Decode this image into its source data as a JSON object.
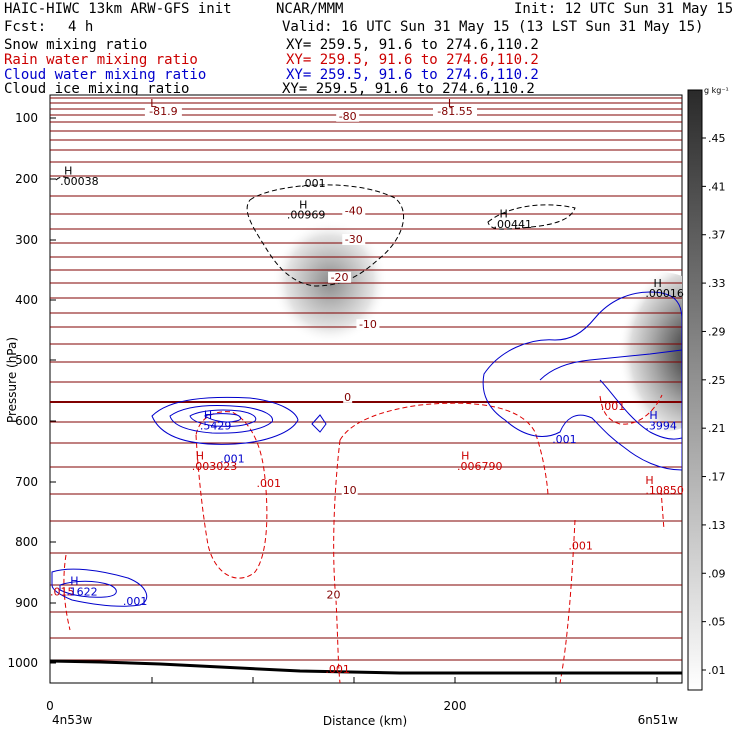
{
  "header": {
    "model": "HAIC-HIWC 13km ARW-GFS init",
    "center": "NCAR/MMM",
    "init": "Init: 12 UTC Sun 31 May 15",
    "fcst_label": "Fcst:",
    "fcst_value": "4 h",
    "valid": "Valid: 16 UTC Sun 31 May 15 (13 LST Sun 31 May 15)"
  },
  "fields": [
    {
      "name": "Snow mixing ratio",
      "xy": "XY= 259.5, 91.6 to 274.6,110.2",
      "color": "#000000"
    },
    {
      "name": "Rain water mixing ratio",
      "xy": "XY= 259.5, 91.6 to 274.6,110.2",
      "color": "#cc0000"
    },
    {
      "name": "Cloud water mixing ratio",
      "xy": "XY= 259.5, 91.6 to 274.6,110.2",
      "color": "#0000cc"
    },
    {
      "name": "Cloud ice mixing ratio",
      "xy": "XY= 259.5, 91.6 to 274.6,110.2",
      "color": "#000000"
    }
  ],
  "colorbar": {
    "unit": "g kg⁻¹",
    "ticks": [
      ".45",
      ".41",
      ".37",
      ".33",
      ".29",
      ".25",
      ".21",
      ".17",
      ".13",
      ".09",
      ".05",
      ".01"
    ]
  },
  "chart_data": {
    "type": "contour",
    "xlabel": "Distance (km)",
    "ylabel": "Pressure (hPa)",
    "xlim": [
      0,
      310
    ],
    "ylim": [
      1050,
      70
    ],
    "x_ticks": [
      "0",
      "200"
    ],
    "y_ticks": [
      "100",
      "200",
      "300",
      "400",
      "500",
      "600",
      "700",
      "800",
      "900",
      "1000"
    ],
    "endpoint_left": "4n53w",
    "endpoint_right": "6n51w",
    "temperature_labels": [
      {
        "text": "-81.9",
        "x": 56,
        "p": 95
      },
      {
        "text": "-80",
        "x": 147,
        "p": 103
      },
      {
        "text": "-81.55",
        "x": 200,
        "p": 95
      },
      {
        "text": "-40",
        "x": 150,
        "p": 258
      },
      {
        "text": "-30",
        "x": 150,
        "p": 305
      },
      {
        "text": "-20",
        "x": 143,
        "p": 368
      },
      {
        "text": "-10",
        "x": 157,
        "p": 447
      },
      {
        "text": "0",
        "x": 147,
        "p": 567
      },
      {
        "text": "10",
        "x": 148,
        "p": 720
      },
      {
        "text": "20",
        "x": 140,
        "p": 893
      }
    ],
    "low_markers": [
      {
        "text": "L",
        "x": 51,
        "p": 82
      },
      {
        "text": "L",
        "x": 198,
        "p": 82
      }
    ],
    "ice_labels": [
      {
        "text": ".001",
        "x": 124,
        "p": 213
      },
      {
        "text": "H",
        "x": 123,
        "p": 248
      },
      {
        "text": ".00969",
        "x": 117,
        "p": 265
      },
      {
        "text": "H",
        "x": 222,
        "p": 263
      },
      {
        "text": ".00441",
        "x": 219,
        "p": 280
      },
      {
        "text": "H",
        "x": 7,
        "p": 193
      },
      {
        "text": ".00038",
        "x": 5,
        "p": 210
      }
    ],
    "rain_labels": [
      {
        "text": "H",
        "x": 72,
        "p": 663
      },
      {
        "text": ".003023",
        "x": 70,
        "p": 680
      },
      {
        "text": ".001",
        "x": 102,
        "p": 708
      },
      {
        "text": "H",
        "x": 203,
        "p": 663
      },
      {
        "text": ".006790",
        "x": 201,
        "p": 680
      },
      {
        "text": "H",
        "x": 294,
        "p": 703
      },
      {
        "text": ".10850",
        "x": 294,
        "p": 720
      },
      {
        "text": ".001",
        "x": 256,
        "p": 812
      },
      {
        "text": ".001",
        "x": 272,
        "p": 582
      },
      {
        "text": ".001",
        "x": 136,
        "p": 1017
      },
      {
        "text": ".015",
        "x": 0,
        "p": 888
      }
    ],
    "cloud_labels": [
      {
        "text": "H",
        "x": 76,
        "p": 596
      },
      {
        "text": ".5429",
        "x": 74,
        "p": 614
      },
      {
        "text": ".001",
        "x": 84,
        "p": 668
      },
      {
        "text": ".001",
        "x": 248,
        "p": 636
      },
      {
        "text": "H",
        "x": 296,
        "p": 597
      },
      {
        "text": ".3994",
        "x": 294,
        "p": 614
      },
      {
        "text": "H",
        "x": 10,
        "p": 870
      },
      {
        "text": ".1622",
        "x": 8,
        "p": 888
      },
      {
        "text": ".001",
        "x": 36,
        "p": 903
      }
    ],
    "snow_labels": [
      {
        "text": "H",
        "x": 298,
        "p": 378
      },
      {
        "text": ".00016",
        "x": 294,
        "p": 395
      }
    ]
  }
}
